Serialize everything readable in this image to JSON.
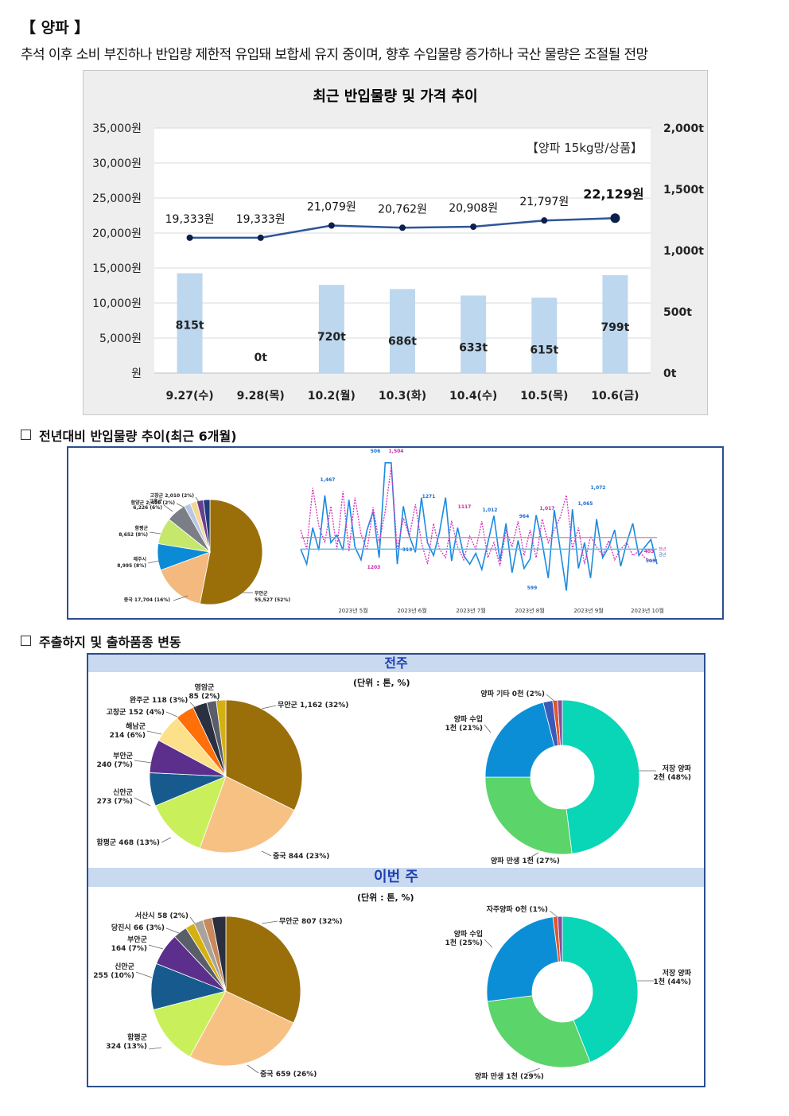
{
  "header": {
    "title": "【 양파 】",
    "subtitle": "추석 이후 소비 부진하나 반입량 제한적 유입돼 보합세 유지 중이며, 향후 수입물량 증가하나 국산 물량은 조절될 전망"
  },
  "sections": {
    "trend": "전년대비 반입물량 추이(최근 6개월)",
    "shipping": "주출하지 및 출하품종 변동"
  },
  "chart_data": [
    {
      "id": "price-volume",
      "type": "bar",
      "title": "최근 반입물량 및 가격 추이",
      "annotation": "【양파 15kg망/상품】",
      "categories": [
        "9.27(수)",
        "9.28(목)",
        "10.2(월)",
        "10.3(화)",
        "10.4(수)",
        "10.5(목)",
        "10.6(금)"
      ],
      "series": [
        {
          "kind": "bar",
          "axis": "right",
          "values": [
            815,
            0,
            720,
            686,
            633,
            615,
            799
          ],
          "labels": [
            "815t",
            "0t",
            "720t",
            "686t",
            "633t",
            "615t",
            "799t"
          ],
          "color": "#bdd7ee"
        },
        {
          "kind": "line",
          "axis": "left",
          "values": [
            19333,
            19333,
            21079,
            20762,
            20908,
            21797,
            22129
          ],
          "labels": [
            "19,333원",
            "19,333원",
            "21,079원",
            "20,762원",
            "20,908원",
            "21,797원",
            "22,129원"
          ],
          "color": "#2f5597"
        }
      ],
      "y_left": {
        "range": [
          0,
          35000
        ],
        "ticks": [
          "원",
          "5,000원",
          "10,000원",
          "15,000원",
          "20,000원",
          "25,000원",
          "30,000원",
          "35,000원"
        ]
      },
      "y_right": {
        "range": [
          0,
          2000
        ],
        "ticks": [
          "0t",
          "500t",
          "1,000t",
          "1,500t",
          "2,000t"
        ]
      },
      "grid": true
    },
    {
      "id": "origin-share-6m",
      "type": "pie",
      "slices": [
        {
          "label": "무안군\n55,527 (52%)",
          "value": 52,
          "color": "#9a6f0a"
        },
        {
          "label": "중국 17,704 (16%)",
          "value": 16,
          "color": "#f4b97e"
        },
        {
          "label": "제주시\n8,995 (8%)",
          "value": 8,
          "color": "#0b8bd6"
        },
        {
          "label": "함평군\n8,652 (8%)",
          "value": 8,
          "color": "#c5e86c"
        },
        {
          "label": "고흥군\n6,226 (6%)",
          "value": 6,
          "color": "#7b7e87"
        },
        {
          "label": "함양군 2,410 (2%)",
          "value": 2,
          "color": "#b8c7e6"
        },
        {
          "label": "고창군 2,010 (2%)",
          "value": 2,
          "color": "#f2d98e"
        },
        {
          "label": "",
          "value": 2,
          "color": "#6a3e93"
        },
        {
          "label": "",
          "value": 2,
          "color": "#1f3d7a"
        }
      ]
    },
    {
      "id": "volume-vs-last-year",
      "type": "line",
      "x_ticks": [
        "2023년 5월",
        "2023년 6월",
        "2023년 7월",
        "2023년 8월",
        "2023년 9월",
        "2023년 10월"
      ],
      "annotations": [
        "506",
        "1,504",
        "1,467",
        "1271",
        "1117",
        "1,012",
        "964",
        "1,017",
        "1,065",
        "1,072",
        "1203",
        "599",
        "313",
        "403",
        "549",
        "634"
      ],
      "legend": [
        "전년",
        "금년"
      ],
      "series": [
        {
          "name": "금년",
          "color": "#1b8be0",
          "values": [
            700,
            560,
            900,
            690,
            1200,
            760,
            830,
            690,
            1160,
            720,
            600,
            880,
            1050,
            620,
            1506,
            1504,
            560,
            1100,
            820,
            670,
            1180,
            760,
            640,
            860,
            1180,
            590,
            900,
            640,
            560,
            660,
            510,
            760,
            1012,
            590,
            940,
            480,
            780,
            520,
            610,
            1017,
            760,
            430,
            1065,
            690,
            313,
            1072,
            520,
            760,
            430,
            980,
            620,
            720,
            880,
            540,
            760,
            940,
            640,
            720,
            790,
            560
          ]
        },
        {
          "name": "전년",
          "color": "#d633b8",
          "values": [
            880,
            700,
            1271,
            920,
            760,
            1100,
            700,
            1240,
            680,
            1180,
            840,
            690,
            1090,
            760,
            1050,
            1467,
            690,
            990,
            820,
            1117,
            760,
            560,
            940,
            700,
            620,
            964,
            720,
            600,
            820,
            700,
            960,
            620,
            760,
            540,
            880,
            720,
            960,
            640,
            880,
            620,
            980,
            760,
            880,
            1000,
            1203,
            700,
            900,
            560,
            820,
            720,
            640,
            780,
            600,
            700,
            760,
            640,
            680,
            620,
            590,
            600
          ]
        },
        {
          "name": "금년 평균",
          "color": "#5bbbe8",
          "values": [
            700,
            700
          ]
        },
        {
          "name": "전년 평균",
          "color": "#e87f8f",
          "values": [
            808,
            808
          ]
        }
      ]
    },
    {
      "id": "last-week-origin",
      "type": "pie",
      "group": "전주",
      "unit": "(단위 : 톤, %)",
      "slices": [
        {
          "label": "무안군 1,162 (32%)",
          "value": 32,
          "color": "#9a6f0a"
        },
        {
          "label": "중국 844 (23%)",
          "value": 23,
          "color": "#f8c184"
        },
        {
          "label": "함평군 468 (13%)",
          "value": 13,
          "color": "#c9f05a"
        },
        {
          "label": "신안군\n273 (7%)",
          "value": 7,
          "color": "#175b8e"
        },
        {
          "label": "부안군\n240 (7%)",
          "value": 7,
          "color": "#5b2f8b"
        },
        {
          "label": "해남군\n214 (6%)",
          "value": 6,
          "color": "#fde08a"
        },
        {
          "label": "고창군 152 (4%)",
          "value": 4,
          "color": "#ff6f0a"
        },
        {
          "label": "완주군 118 (3%)",
          "value": 3,
          "color": "#2b3040"
        },
        {
          "label": "영암군\n85 (2%)",
          "value": 2,
          "color": "#5a5e68"
        },
        {
          "label": "",
          "value": 2,
          "color": "#d4b011"
        }
      ]
    },
    {
      "id": "last-week-variety",
      "type": "pie",
      "group": "전주",
      "donut": true,
      "slices": [
        {
          "label": "저장 양파\n2천 (48%)",
          "value": 48,
          "color": "#08d6b6"
        },
        {
          "label": "양파 만생 1천 (27%)",
          "value": 27,
          "color": "#5bd46a"
        },
        {
          "label": "양파 수입\n1천 (21%)",
          "value": 21,
          "color": "#0b8ed6"
        },
        {
          "label": "양파 기타 0천 (2%)",
          "value": 2,
          "color": "#3a59b8"
        },
        {
          "label": "",
          "value": 1,
          "color": "#e0552a"
        },
        {
          "label": "",
          "value": 1,
          "color": "#8a4aa0"
        }
      ]
    },
    {
      "id": "this-week-origin",
      "type": "pie",
      "group": "이번 주",
      "unit": "(단위 : 톤, %)",
      "slices": [
        {
          "label": "무안군 807 (32%)",
          "value": 32,
          "color": "#9a6f0a"
        },
        {
          "label": "중국 659 (26%)",
          "value": 26,
          "color": "#f8c184"
        },
        {
          "label": "함평군\n324 (13%)",
          "value": 13,
          "color": "#c9f05a"
        },
        {
          "label": "신안군\n255 (10%)",
          "value": 10,
          "color": "#175b8e"
        },
        {
          "label": "부안군\n164 (7%)",
          "value": 7,
          "color": "#5b2f8b"
        },
        {
          "label": "당진시 66 (3%)",
          "value": 3,
          "color": "#5a5e68"
        },
        {
          "label": "서산시 58 (2%)",
          "value": 2,
          "color": "#d4b011"
        },
        {
          "label": "",
          "value": 2,
          "color": "#a9a39a"
        },
        {
          "label": "",
          "value": 2,
          "color": "#c7895d"
        },
        {
          "label": "",
          "value": 3,
          "color": "#2b3040"
        }
      ]
    },
    {
      "id": "this-week-variety",
      "type": "pie",
      "group": "이번 주",
      "donut": true,
      "slices": [
        {
          "label": "저장 양파\n1천 (44%)",
          "value": 44,
          "color": "#08d6b6"
        },
        {
          "label": "양파 만생 1천 (29%)",
          "value": 29,
          "color": "#5bd46a"
        },
        {
          "label": "양파 수입\n1천 (25%)",
          "value": 25,
          "color": "#0b8ed6"
        },
        {
          "label": "자주양파 0천 (1%)",
          "value": 1,
          "color": "#e0552a"
        },
        {
          "label": "",
          "value": 1,
          "color": "#8a4aa0"
        }
      ]
    }
  ],
  "groups": {
    "last_week": "전주",
    "this_week": "이번 주"
  }
}
